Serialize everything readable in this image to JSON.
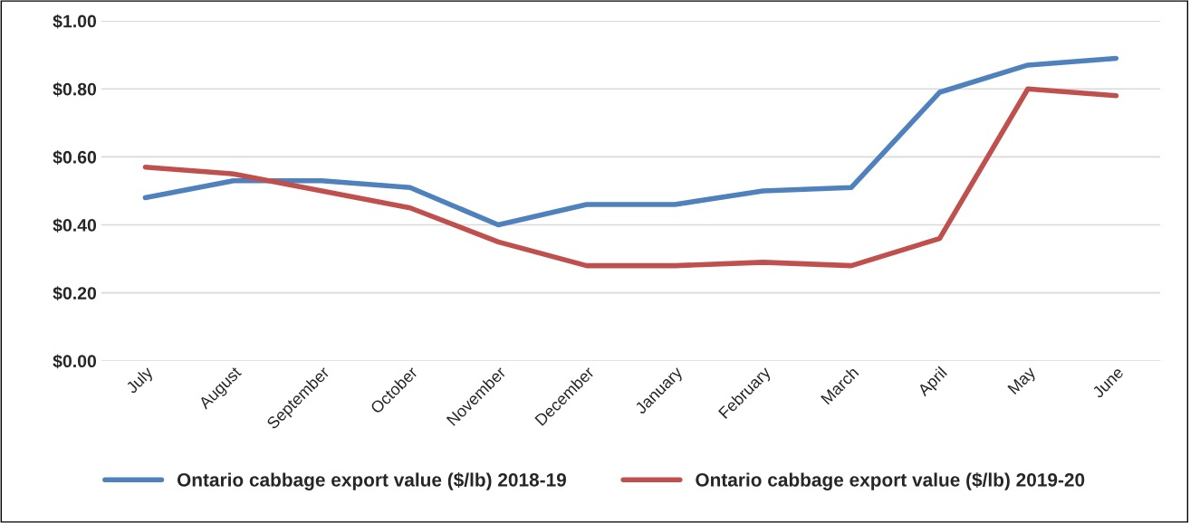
{
  "chart_data": {
    "type": "line",
    "categories": [
      "July",
      "August",
      "September",
      "October",
      "November",
      "December",
      "January",
      "February",
      "March",
      "April",
      "May",
      "June"
    ],
    "series": [
      {
        "name": "Ontario cabbage export value ($/lb) 2018-19",
        "color": "#4f81bd",
        "values": [
          0.48,
          0.53,
          0.53,
          0.51,
          0.4,
          0.46,
          0.46,
          0.5,
          0.51,
          0.79,
          0.87,
          0.89
        ]
      },
      {
        "name": "Ontario cabbage export value ($/lb) 2019-20",
        "color": "#c0504d",
        "values": [
          0.57,
          0.55,
          0.5,
          0.45,
          0.35,
          0.28,
          0.28,
          0.29,
          0.28,
          0.36,
          0.8,
          0.78
        ]
      }
    ],
    "ylim": [
      0,
      1.0
    ],
    "yticks": [
      {
        "value": 0,
        "label": "$0.00"
      },
      {
        "value": 0.2,
        "label": "$0.20"
      },
      {
        "value": 0.4,
        "label": "$0.40"
      },
      {
        "value": 0.6,
        "label": "$0.60"
      },
      {
        "value": 0.8,
        "label": "$0.80"
      },
      {
        "value": 1.0,
        "label": "$1.00"
      }
    ],
    "grid": "y",
    "legend": "bottom",
    "marker": "none",
    "line_style": "solid"
  }
}
